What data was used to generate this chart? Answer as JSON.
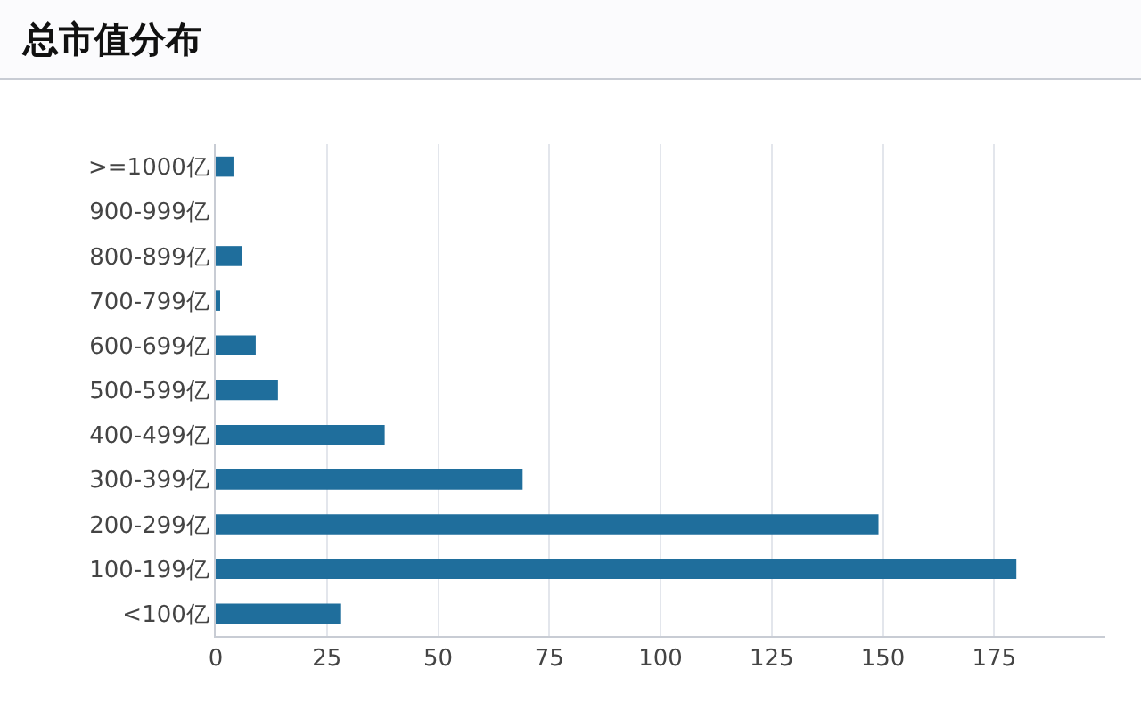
{
  "chart_data": {
    "type": "bar",
    "orientation": "horizontal",
    "title": "总市值分布",
    "categories": [
      ">=1000亿",
      "900-999亿",
      "800-899亿",
      "700-799亿",
      "600-699亿",
      "500-599亿",
      "400-499亿",
      "300-399亿",
      "200-299亿",
      "100-199亿",
      "<100亿"
    ],
    "values": [
      4,
      0,
      6,
      1,
      9,
      14,
      38,
      69,
      149,
      180,
      28
    ],
    "color": "#1f6e9c",
    "xlim": [
      0,
      200
    ],
    "xticks": [
      0,
      25,
      50,
      75,
      100,
      125,
      150,
      175
    ],
    "grid": "x",
    "legend": false
  }
}
